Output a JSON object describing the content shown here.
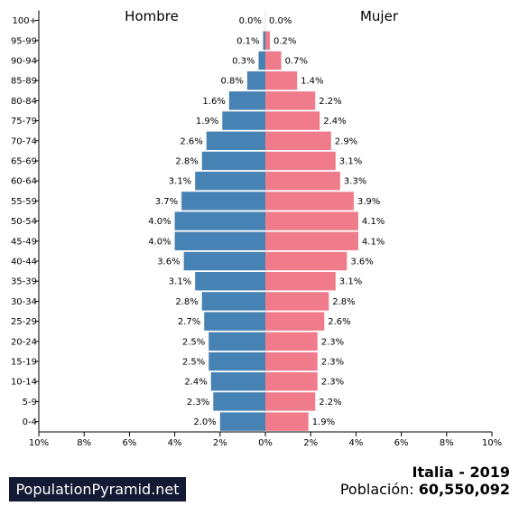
{
  "chart_data": {
    "type": "bar",
    "categories": [
      "100+",
      "95-99",
      "90-94",
      "85-89",
      "80-84",
      "75-79",
      "70-74",
      "65-69",
      "60-64",
      "55-59",
      "50-54",
      "45-49",
      "40-44",
      "35-39",
      "30-34",
      "25-29",
      "20-24",
      "15-19",
      "10-14",
      "5-9",
      "0-4"
    ],
    "series": [
      {
        "name": "Hombre",
        "color": "#4682b4",
        "values": [
          0.0,
          0.1,
          0.3,
          0.8,
          1.6,
          1.9,
          2.6,
          2.8,
          3.1,
          3.7,
          4.0,
          4.0,
          3.6,
          3.1,
          2.8,
          2.7,
          2.5,
          2.5,
          2.4,
          2.3,
          2.0
        ],
        "labels": [
          "0.0%",
          "0.1%",
          "0.3%",
          "0.8%",
          "1.6%",
          "1.9%",
          "2.6%",
          "2.8%",
          "3.1%",
          "3.7%",
          "4.0%",
          "4.0%",
          "3.6%",
          "3.1%",
          "2.8%",
          "2.7%",
          "2.5%",
          "2.5%",
          "2.4%",
          "2.3%",
          "2.0%"
        ]
      },
      {
        "name": "Mujer",
        "color": "#f07b8a",
        "values": [
          0.0,
          0.2,
          0.7,
          1.4,
          2.2,
          2.4,
          2.9,
          3.1,
          3.3,
          3.9,
          4.1,
          4.1,
          3.6,
          3.1,
          2.8,
          2.6,
          2.3,
          2.3,
          2.3,
          2.2,
          1.9
        ],
        "labels": [
          "0.0%",
          "0.2%",
          "0.7%",
          "1.4%",
          "2.2%",
          "2.4%",
          "2.9%",
          "3.1%",
          "3.3%",
          "3.9%",
          "4.1%",
          "4.1%",
          "3.6%",
          "3.1%",
          "2.8%",
          "2.6%",
          "2.3%",
          "2.3%",
          "2.3%",
          "2.2%",
          "1.9%"
        ]
      }
    ],
    "xlim": [
      -10,
      10
    ],
    "x_ticks": [
      {
        "value": -10,
        "label": "10%"
      },
      {
        "value": -8,
        "label": "8%"
      },
      {
        "value": -6,
        "label": "6%"
      },
      {
        "value": -4,
        "label": "4%"
      },
      {
        "value": -2,
        "label": "2%"
      },
      {
        "value": 0,
        "label": "0%"
      },
      {
        "value": 2,
        "label": "2%"
      },
      {
        "value": 4,
        "label": "4%"
      },
      {
        "value": 6,
        "label": "6%"
      },
      {
        "value": 8,
        "label": "8%"
      },
      {
        "value": 10,
        "label": "10%"
      }
    ],
    "grid": false
  },
  "labels": {
    "male": "Hombre",
    "female": "Mujer"
  },
  "branding": {
    "site": "PopulationPyramid.net"
  },
  "footer": {
    "country_year": "Italia - 2019",
    "population_label": "Población:",
    "population_value": "60,550,092"
  }
}
